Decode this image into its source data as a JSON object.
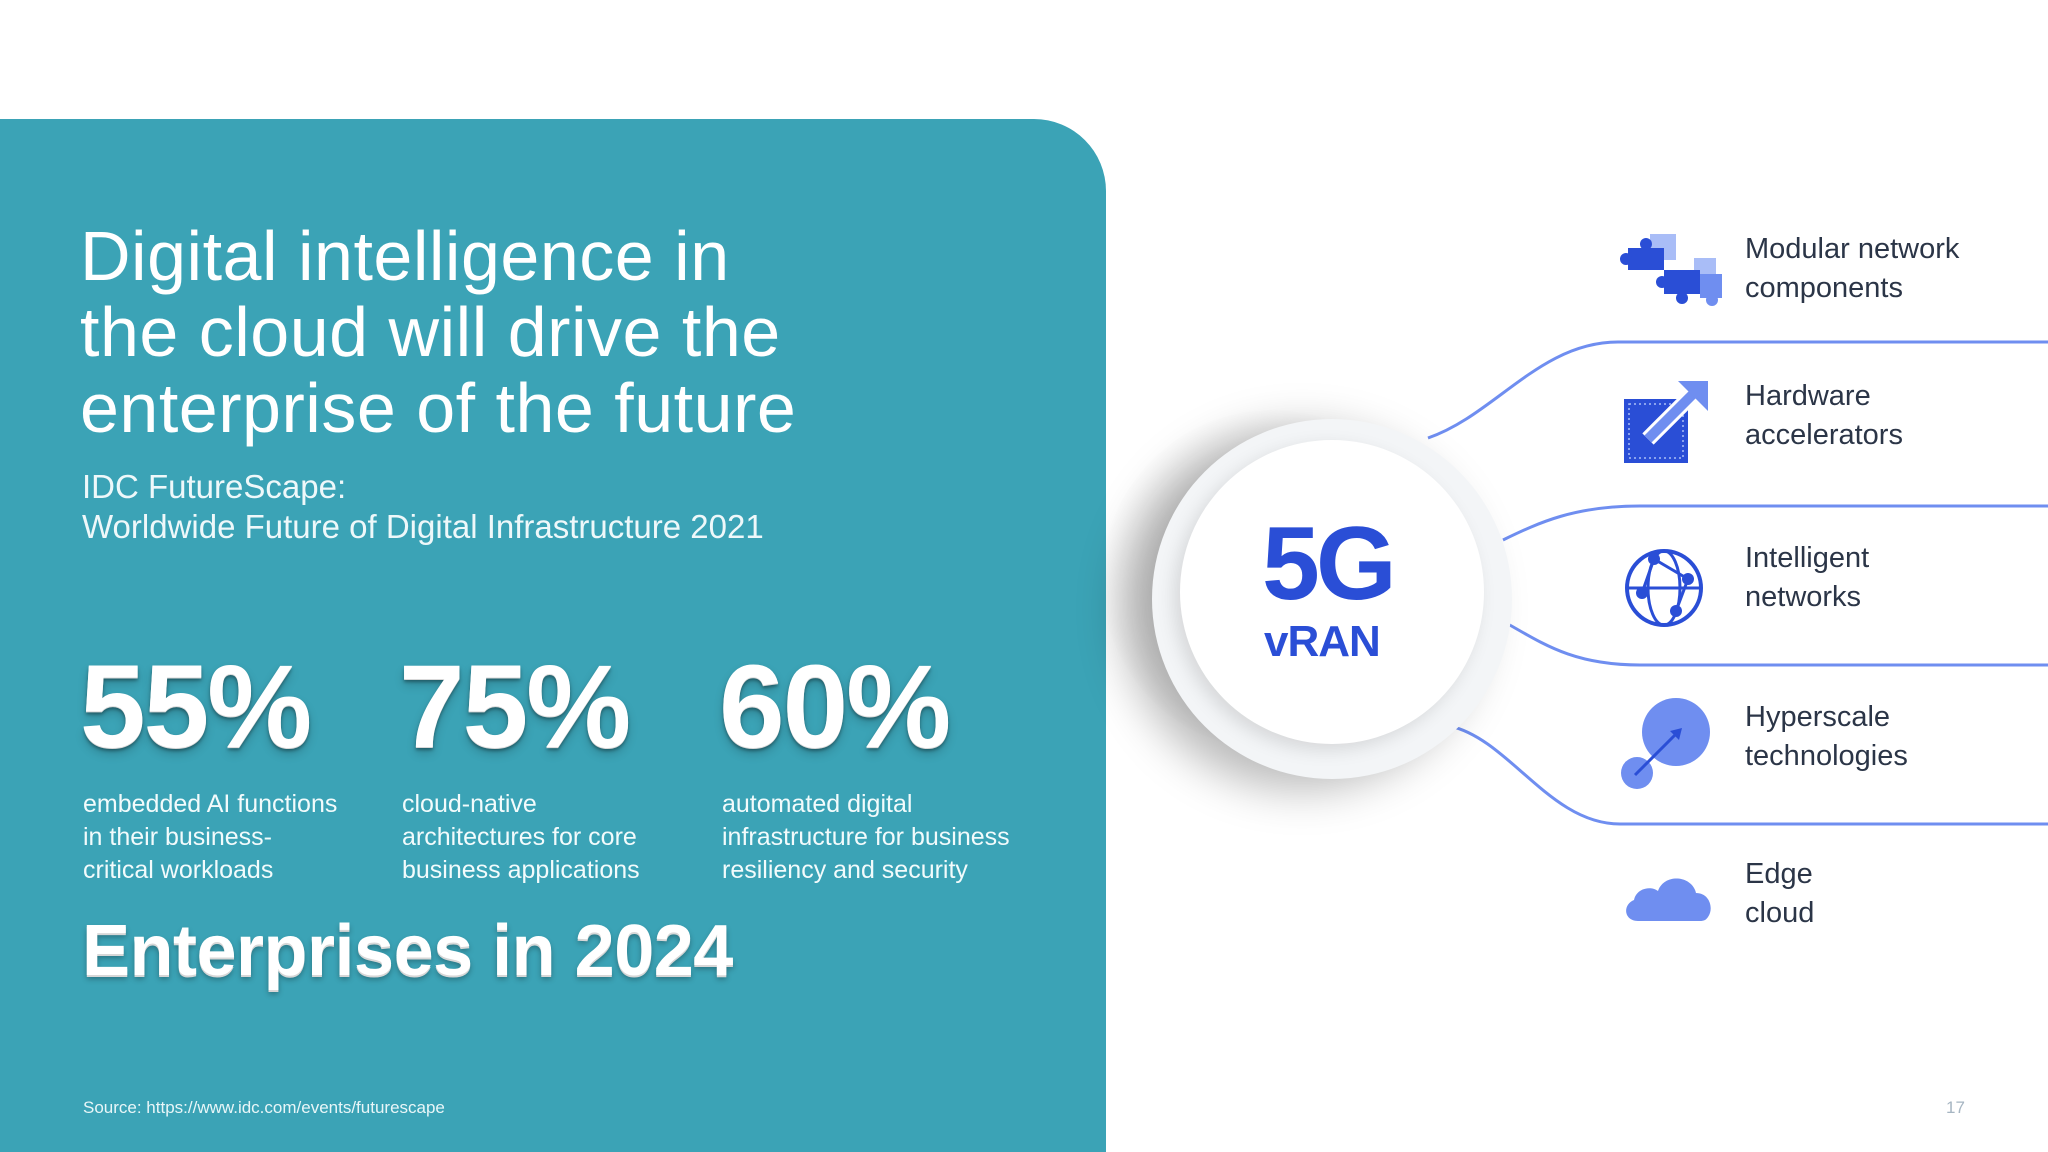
{
  "slide": {
    "headline": [
      "Digital intelligence in",
      "the cloud will drive the",
      "enterprise of the future"
    ],
    "subtitle": [
      "IDC FutureScape:",
      "Worldwide Future of Digital Infrastructure 2021"
    ],
    "stats": [
      {
        "value": "55%",
        "desc": [
          "embedded AI functions",
          "in their business-",
          "critical workloads"
        ]
      },
      {
        "value": "75%",
        "desc": [
          "cloud-native",
          "architectures for core",
          "business applications"
        ]
      },
      {
        "value": "60%",
        "desc": [
          "automated digital",
          "infrastructure for business",
          "resiliency and security"
        ]
      }
    ],
    "stats_caption": "Enterprises in 2024",
    "source": "Source: https://www.idc.com/events/futurescape",
    "page_number": "17"
  },
  "hub": {
    "title": "5G",
    "subtitle": "vRAN"
  },
  "features": [
    {
      "icon": "puzzle-icon",
      "label": [
        "Modular network",
        "components"
      ]
    },
    {
      "icon": "chip-arrow-icon",
      "label": [
        "Hardware",
        "accelerators"
      ]
    },
    {
      "icon": "globe-network-icon",
      "label": [
        "Intelligent",
        "networks"
      ]
    },
    {
      "icon": "scale-circles-icon",
      "label": [
        "Hyperscale",
        "technologies"
      ]
    },
    {
      "icon": "cloud-icon",
      "label": [
        "Edge",
        "cloud"
      ]
    }
  ],
  "colors": {
    "panel": "#3ba3b6",
    "accent_blue": "#2a4ed6",
    "light_blue": "#6f8ef0",
    "text_dark": "#2b3547"
  }
}
